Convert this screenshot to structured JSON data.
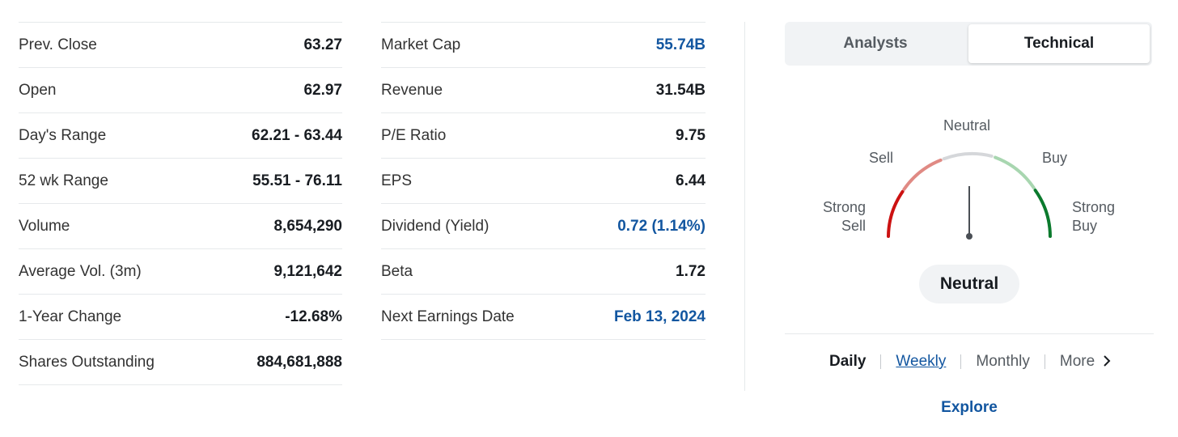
{
  "stats_left": [
    {
      "label": "Prev. Close",
      "value": "63.27",
      "link": false
    },
    {
      "label": "Open",
      "value": "62.97",
      "link": false
    },
    {
      "label": "Day's Range",
      "value": "62.21 - 63.44",
      "link": false
    },
    {
      "label": "52 wk Range",
      "value": "55.51 - 76.11",
      "link": false
    },
    {
      "label": "Volume",
      "value": "8,654,290",
      "link": false
    },
    {
      "label": "Average Vol. (3m)",
      "value": "9,121,642",
      "link": false
    },
    {
      "label": "1-Year Change",
      "value": "-12.68%",
      "link": false
    },
    {
      "label": "Shares Outstanding",
      "value": "884,681,888",
      "link": false
    }
  ],
  "stats_right": [
    {
      "label": "Market Cap",
      "value": "55.74B",
      "link": true
    },
    {
      "label": "Revenue",
      "value": "31.54B",
      "link": false
    },
    {
      "label": "P/E Ratio",
      "value": "9.75",
      "link": false
    },
    {
      "label": "EPS",
      "value": "6.44",
      "link": false
    },
    {
      "label": "Dividend (Yield)",
      "value": "0.72 (1.14%)",
      "link": true
    },
    {
      "label": "Beta",
      "value": "1.72",
      "link": false
    },
    {
      "label": "Next Earnings Date",
      "value": "Feb 13, 2024",
      "link": true
    }
  ],
  "panel": {
    "tabs": [
      "Analysts",
      "Technical"
    ],
    "active_tab": "Technical",
    "gauge": {
      "labels": {
        "strong_sell": "Strong\nSell",
        "sell": "Sell",
        "neutral": "Neutral",
        "buy": "Buy",
        "strong_buy": "Strong\nBuy"
      },
      "reading": "Neutral",
      "colors": {
        "strong_sell": "#cc1212",
        "sell": "#e08a84",
        "neutral": "#d5d7da",
        "buy": "#a8d6b0",
        "strong_buy": "#0b7a2d"
      }
    },
    "verdict": "Neutral",
    "periods": [
      {
        "label": "Daily",
        "state": "active"
      },
      {
        "label": "Weekly",
        "state": "link"
      },
      {
        "label": "Monthly",
        "state": "normal"
      },
      {
        "label": "More",
        "state": "more"
      }
    ],
    "explore": "Explore"
  }
}
